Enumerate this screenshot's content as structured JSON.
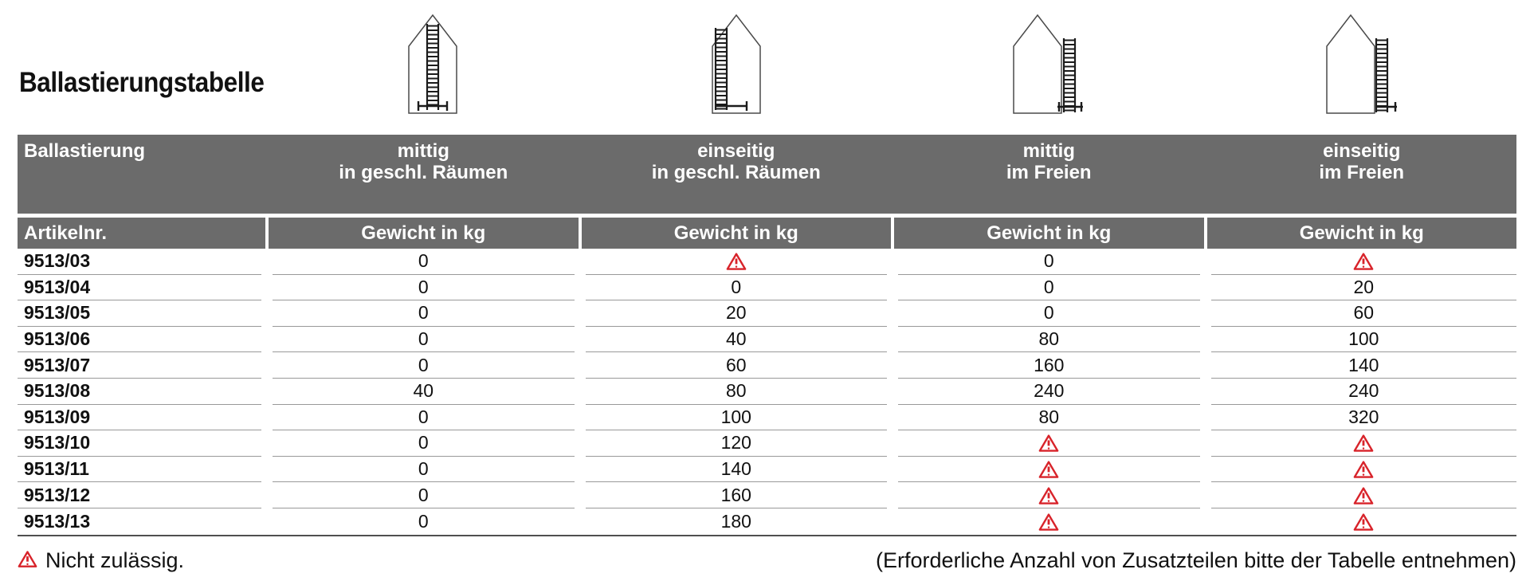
{
  "page": {
    "title": "Ballastierungstabelle"
  },
  "colors": {
    "header_bg": "#6b6b6b",
    "header_text": "#ffffff",
    "row_line": "#999999",
    "bottom_line": "#4f4f4f",
    "warning_red": "#d8232a",
    "text": "#111111"
  },
  "icons": [
    {
      "name": "house-ladder-centered-indoor-icon"
    },
    {
      "name": "house-ladder-one-sided-indoor-icon"
    },
    {
      "name": "house-ladder-centered-outdoor-icon"
    },
    {
      "name": "house-ladder-one-sided-outdoor-icon"
    }
  ],
  "table": {
    "header_row1": {
      "label": "Ballastierung",
      "columns": [
        [
          "mittig",
          "in geschl. Räumen"
        ],
        [
          "einseitig",
          "in geschl. Räumen"
        ],
        [
          "mittig",
          "im Freien"
        ],
        [
          "einseitig",
          "im Freien"
        ]
      ]
    },
    "header_row2": {
      "label": "Artikelnr.",
      "weight": "Gewicht in kg"
    },
    "warning_value": "warn",
    "rows": [
      {
        "article": "9513/03",
        "values": [
          "0",
          "warn",
          "0",
          "warn"
        ]
      },
      {
        "article": "9513/04",
        "values": [
          "0",
          "0",
          "0",
          "20"
        ]
      },
      {
        "article": "9513/05",
        "values": [
          "0",
          "20",
          "0",
          "60"
        ]
      },
      {
        "article": "9513/06",
        "values": [
          "0",
          "40",
          "80",
          "100"
        ]
      },
      {
        "article": "9513/07",
        "values": [
          "0",
          "60",
          "160",
          "140"
        ]
      },
      {
        "article": "9513/08",
        "values": [
          "40",
          "80",
          "240",
          "240"
        ]
      },
      {
        "article": "9513/09",
        "values": [
          "0",
          "100",
          "80",
          "320"
        ]
      },
      {
        "article": "9513/10",
        "values": [
          "0",
          "120",
          "warn",
          "warn"
        ]
      },
      {
        "article": "9513/11",
        "values": [
          "0",
          "140",
          "warn",
          "warn"
        ]
      },
      {
        "article": "9513/12",
        "values": [
          "0",
          "160",
          "warn",
          "warn"
        ]
      },
      {
        "article": "9513/13",
        "values": [
          "0",
          "180",
          "warn",
          "warn"
        ]
      }
    ]
  },
  "footer": {
    "legend_text": "Nicht zulässig.",
    "note_text": "(Erforderliche Anzahl von Zusatzteilen bitte der Tabelle entnehmen)"
  }
}
